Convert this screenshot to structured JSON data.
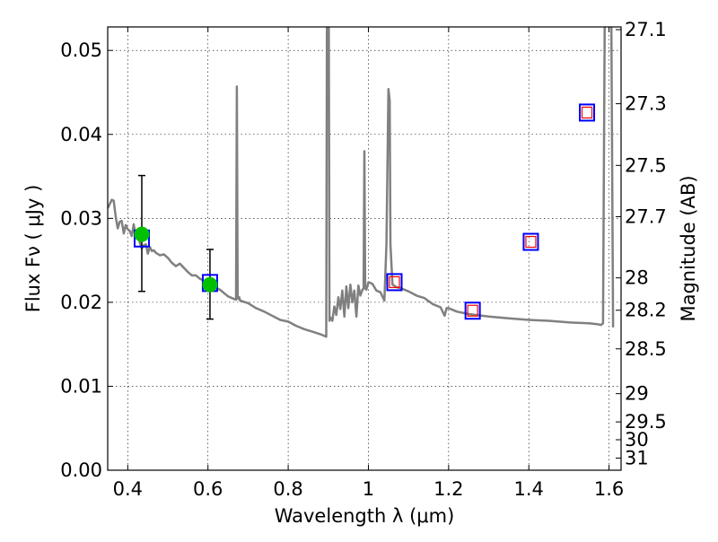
{
  "chart_data": {
    "type": "line",
    "title": "",
    "xlabel": "Wavelength  λ (μm)",
    "ylabel": "Flux  Fν ( μJy )",
    "y2label": "Magnitude (AB)",
    "xlim": [
      0.35,
      1.63
    ],
    "ylim": [
      0.0,
      0.0528
    ],
    "grid": true,
    "x_ticks": [
      0.4,
      0.6,
      0.8,
      1.0,
      1.2,
      1.4,
      1.6
    ],
    "x_tick_labels": [
      "0.4",
      "0.6",
      "0.8",
      "1",
      "1.2",
      "1.4",
      "1.6"
    ],
    "y_ticks": [
      0.0,
      0.01,
      0.02,
      0.03,
      0.04,
      0.05
    ],
    "y_tick_labels": [
      "0.00",
      "0.01",
      "0.02",
      "0.03",
      "0.04",
      "0.05"
    ],
    "y2_ticks_mag": [
      27.1,
      27.3,
      27.5,
      27.7,
      28,
      28.2,
      28.5,
      29,
      29.5,
      30,
      31
    ],
    "y2_tick_labels": [
      "27.1",
      "27.3",
      "27.5",
      "27.7",
      "28",
      "28.2",
      "28.5",
      "29",
      "29.5",
      "30",
      "31"
    ],
    "series": [
      {
        "kind": "model-sed",
        "color": "#808080",
        "x": [
          0.35,
          0.36,
          0.365,
          0.37,
          0.375,
          0.38,
          0.385,
          0.39,
          0.395,
          0.4,
          0.405,
          0.41,
          0.415,
          0.42,
          0.425,
          0.43,
          0.435,
          0.44,
          0.445,
          0.45,
          0.455,
          0.46,
          0.465,
          0.47,
          0.48,
          0.49,
          0.5,
          0.51,
          0.52,
          0.53,
          0.54,
          0.55,
          0.56,
          0.57,
          0.58,
          0.59,
          0.6,
          0.61,
          0.62,
          0.63,
          0.64,
          0.65,
          0.66,
          0.67,
          0.672,
          0.674,
          0.676,
          0.678,
          0.68,
          0.7,
          0.72,
          0.74,
          0.76,
          0.78,
          0.8,
          0.82,
          0.84,
          0.86,
          0.88,
          0.895,
          0.897,
          0.899,
          0.9,
          0.901,
          0.903,
          0.905,
          0.91,
          0.915,
          0.92,
          0.925,
          0.93,
          0.935,
          0.94,
          0.945,
          0.95,
          0.955,
          0.96,
          0.965,
          0.97,
          0.975,
          0.98,
          0.985,
          0.988,
          0.99,
          0.992,
          0.995,
          1.0,
          1.01,
          1.02,
          1.03,
          1.04,
          1.045,
          1.05,
          1.053,
          1.055,
          1.06,
          1.07,
          1.08,
          1.1,
          1.12,
          1.14,
          1.16,
          1.18,
          1.19,
          1.195,
          1.2,
          1.22,
          1.25,
          1.3,
          1.35,
          1.4,
          1.45,
          1.5,
          1.55,
          1.57,
          1.58,
          1.585,
          1.59,
          1.595,
          1.6,
          1.605,
          1.61
        ],
        "y": [
          0.0312,
          0.0322,
          0.0321,
          0.0302,
          0.0288,
          0.0296,
          0.0297,
          0.0282,
          0.0292,
          0.0287,
          0.0285,
          0.0279,
          0.0293,
          0.0278,
          0.0284,
          0.0271,
          0.0264,
          0.0268,
          0.0269,
          0.0258,
          0.0266,
          0.0261,
          0.0262,
          0.0259,
          0.0256,
          0.0257,
          0.0253,
          0.0247,
          0.0243,
          0.0246,
          0.0241,
          0.0236,
          0.0232,
          0.0232,
          0.0228,
          0.0226,
          0.022,
          0.0222,
          0.0217,
          0.0215,
          0.0211,
          0.0207,
          0.0205,
          0.0203,
          0.0457,
          0.0206,
          0.0204,
          0.0206,
          0.0202,
          0.0199,
          0.0193,
          0.0189,
          0.0184,
          0.0179,
          0.0177,
          0.0172,
          0.0168,
          0.0165,
          0.0162,
          0.0159,
          0.06,
          0.06,
          0.06,
          0.06,
          0.0178,
          0.0182,
          0.0178,
          0.0195,
          0.0185,
          0.0206,
          0.0192,
          0.0214,
          0.0183,
          0.0219,
          0.0193,
          0.0221,
          0.02,
          0.0214,
          0.0183,
          0.022,
          0.0208,
          0.0215,
          0.0216,
          0.038,
          0.0217,
          0.0215,
          0.0224,
          0.0222,
          0.0214,
          0.0212,
          0.0202,
          0.027,
          0.0454,
          0.044,
          0.027,
          0.0221,
          0.0218,
          0.0217,
          0.0213,
          0.0208,
          0.0205,
          0.0198,
          0.0194,
          0.0184,
          0.0193,
          0.0193,
          0.0189,
          0.0186,
          0.0183,
          0.0181,
          0.0179,
          0.0178,
          0.0176,
          0.0175,
          0.0174,
          0.0173,
          0.0175,
          0.06,
          0.06,
          0.06,
          0.06,
          0.017
        ]
      },
      {
        "kind": "detections",
        "color": "#00c000",
        "x": [
          0.435,
          0.605
        ],
        "y": [
          0.0281,
          0.0221
        ],
        "yerr_low": [
          0.0213,
          0.018
        ],
        "yerr_high": [
          0.0351,
          0.0263
        ]
      },
      {
        "kind": "model-photometry",
        "color": "#0000ff",
        "x": [
          0.435,
          0.605,
          1.065,
          1.26,
          1.405,
          1.545
        ],
        "y": [
          0.0276,
          0.0223,
          0.0224,
          0.019,
          0.0272,
          0.0426
        ]
      },
      {
        "kind": "upper-limits",
        "color": "#ff0000",
        "x": [
          1.065,
          1.26,
          1.405,
          1.545
        ],
        "y": [
          0.0224,
          0.019,
          0.0272,
          0.0426
        ]
      }
    ]
  }
}
